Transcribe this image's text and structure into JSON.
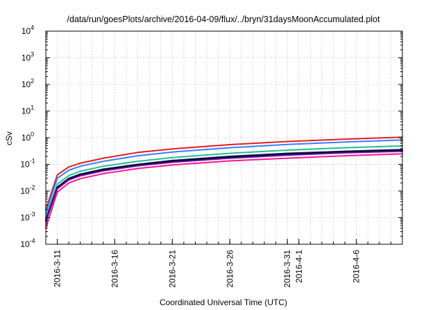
{
  "chart_data": {
    "type": "line",
    "title": "/data/run/goesPlots/archive/2016-04-09/flux/../bryn/31daysMoonAccumulated.plot",
    "xlabel": "Coordinated Universal Time (UTC)",
    "ylabel": "cSv",
    "yscale": "log",
    "ylim": [
      0.0001,
      10000
    ],
    "xlim": [
      "2016-03-10T00:00",
      "2016-04-10T00:00"
    ],
    "grid": true,
    "x_ticks": [
      "2016-3-11",
      "2016-3-16",
      "2016-3-21",
      "2016-3-26",
      "2016-3-31",
      "2016-4-1",
      "2016-4-6"
    ],
    "y_ticks": [
      {
        "base": "10",
        "exp": "-4",
        "value": 0.0001
      },
      {
        "base": "10",
        "exp": "-3",
        "value": 0.001
      },
      {
        "base": "10",
        "exp": "-2",
        "value": 0.01
      },
      {
        "base": "10",
        "exp": "-1",
        "value": 0.1
      },
      {
        "base": "10",
        "exp": "0",
        "value": 1
      },
      {
        "base": "10",
        "exp": "1",
        "value": 10
      },
      {
        "base": "10",
        "exp": "2",
        "value": 100
      },
      {
        "base": "10",
        "exp": "3",
        "value": 1000
      },
      {
        "base": "10",
        "exp": "4",
        "value": 10000
      }
    ],
    "x_sample_dates": [
      "2016-03-10",
      "2016-03-11",
      "2016-03-12",
      "2016-03-13",
      "2016-03-15",
      "2016-03-18",
      "2016-03-21",
      "2016-03-26",
      "2016-03-31",
      "2016-04-05",
      "2016-04-10"
    ],
    "series": [
      {
        "color": "#e41a1c",
        "values": [
          0.002,
          0.04,
          0.08,
          0.11,
          0.17,
          0.28,
          0.38,
          0.55,
          0.72,
          0.88,
          1.05
        ]
      },
      {
        "color": "#377eff",
        "values": [
          0.0015,
          0.03,
          0.06,
          0.085,
          0.13,
          0.21,
          0.29,
          0.42,
          0.56,
          0.69,
          0.82
        ]
      },
      {
        "color": "#1fbf8f",
        "values": [
          0.001,
          0.018,
          0.038,
          0.055,
          0.085,
          0.13,
          0.18,
          0.26,
          0.34,
          0.42,
          0.49
        ]
      },
      {
        "color": "#1b1b6b",
        "values": [
          0.0008,
          0.014,
          0.03,
          0.043,
          0.066,
          0.1,
          0.14,
          0.2,
          0.26,
          0.31,
          0.36
        ]
      },
      {
        "color": "#000000",
        "values": [
          0.0008,
          0.013,
          0.028,
          0.04,
          0.062,
          0.095,
          0.13,
          0.185,
          0.24,
          0.29,
          0.33
        ]
      },
      {
        "color": "#6a0dad",
        "values": [
          0.0007,
          0.012,
          0.026,
          0.037,
          0.057,
          0.088,
          0.12,
          0.17,
          0.22,
          0.27,
          0.31
        ]
      },
      {
        "color": "#ff1493",
        "values": [
          0.0004,
          0.009,
          0.02,
          0.029,
          0.045,
          0.07,
          0.095,
          0.135,
          0.17,
          0.21,
          0.25
        ]
      }
    ]
  }
}
